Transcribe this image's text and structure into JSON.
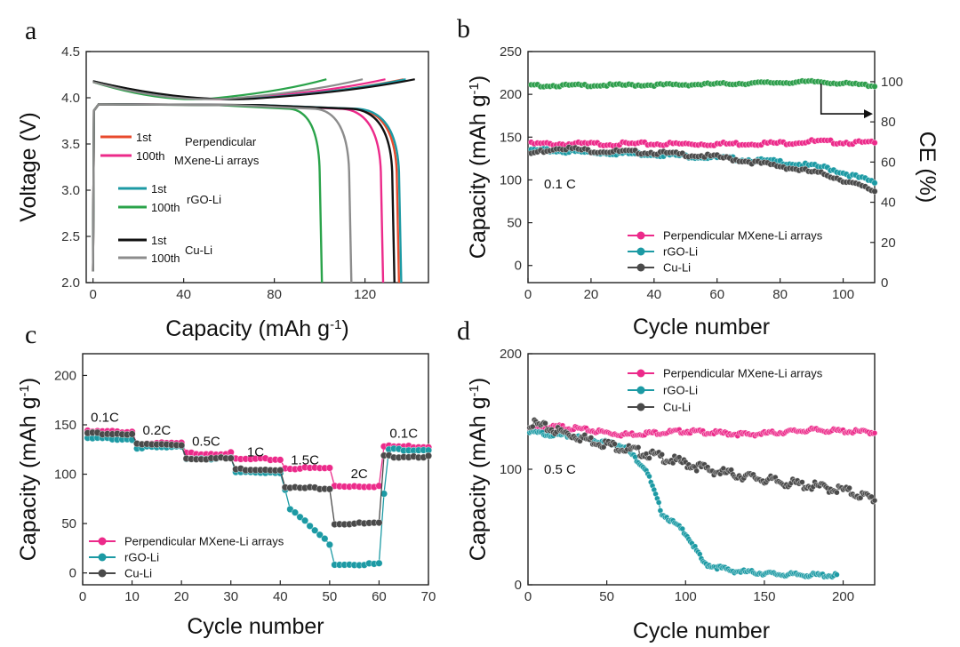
{
  "colors": {
    "mxene": "#ec2a8a",
    "mxene_first": "#e84a2c",
    "rgo": "#1c9aa4",
    "rgo_100": "#2aa34a",
    "cu": "#111111",
    "cu_100": "#8c8c8c",
    "cu_marker": "#4a4a4a",
    "ce": "#2e9e4c"
  },
  "chart_data": [
    {
      "panel": "a",
      "type": "line",
      "xlabel": "Capacity (mAh g",
      "xlabel_sup": "-1",
      "xlabel_tail": ")",
      "ylabel": "Voltage (V)",
      "xlim": [
        -3,
        148
      ],
      "ylim": [
        2.0,
        4.5
      ],
      "xticks": [
        0,
        40,
        80,
        120
      ],
      "yticks": [
        2.0,
        2.5,
        3.0,
        3.5,
        4.0,
        4.5
      ],
      "legend": [
        {
          "label": "1st",
          "series": "mx1"
        },
        {
          "label": "100th",
          "series": "mx100"
        },
        {
          "label": "1st",
          "series": "rgo1"
        },
        {
          "label": "100th",
          "series": "rgo100"
        },
        {
          "label": "1st",
          "series": "cu1"
        },
        {
          "label": "100th",
          "series": "cu100"
        }
      ],
      "group_labels": [
        "Perpendicular",
        "MXene-Li arrays",
        "rGO-Li",
        "Cu-Li"
      ],
      "series": [
        {
          "id": "mx1",
          "color_key": "mxene_first",
          "discharge_capacity": 135,
          "charge_capacity": 137
        },
        {
          "id": "mx100",
          "color_key": "mxene",
          "discharge_capacity": 128,
          "charge_capacity": 129
        },
        {
          "id": "rgo1",
          "color_key": "rgo",
          "discharge_capacity": 136,
          "charge_capacity": 138
        },
        {
          "id": "rgo100",
          "color_key": "rgo_100",
          "discharge_capacity": 101,
          "charge_capacity": 103
        },
        {
          "id": "cu1",
          "color_key": "cu",
          "discharge_capacity": 133,
          "charge_capacity": 142
        },
        {
          "id": "cu100",
          "color_key": "cu_100",
          "discharge_capacity": 114,
          "charge_capacity": 119
        }
      ]
    },
    {
      "panel": "b",
      "type": "scatter",
      "xlabel": "Cycle number",
      "ylabel": "Capacity (mAh g",
      "ylabel_sup": "-1",
      "ylabel_tail": ")",
      "y2label": "CE (%)",
      "xlim": [
        0,
        110
      ],
      "ylim": [
        -20,
        250
      ],
      "y2lim": [
        0,
        115
      ],
      "xticks": [
        0,
        20,
        40,
        60,
        80,
        100
      ],
      "yticks": [
        0,
        50,
        100,
        150,
        200,
        250
      ],
      "y2ticks": [
        0,
        20,
        40,
        60,
        80,
        100
      ],
      "annotation": "0.1 C",
      "legend": [
        "Perpendicular MXene-Li arrays",
        "rGO-Li",
        "Cu-Li"
      ],
      "series": [
        {
          "name": "Perpendicular MXene-Li arrays",
          "color_key": "mxene",
          "points": [
            [
              1,
              142
            ],
            [
              20,
              142
            ],
            [
              40,
              142
            ],
            [
              60,
              142
            ],
            [
              80,
              143
            ],
            [
              90,
              145
            ],
            [
              110,
              143
            ]
          ]
        },
        {
          "name": "rGO-Li",
          "color_key": "rgo",
          "points": [
            [
              1,
              135
            ],
            [
              20,
              132
            ],
            [
              40,
              130
            ],
            [
              60,
              126
            ],
            [
              80,
              121
            ],
            [
              95,
              114
            ],
            [
              110,
              97
            ]
          ]
        },
        {
          "name": "Cu-Li",
          "color_key": "cu_marker",
          "points": [
            [
              1,
              131
            ],
            [
              10,
              138
            ],
            [
              20,
              134
            ],
            [
              40,
              132
            ],
            [
              60,
              127
            ],
            [
              80,
              116
            ],
            [
              95,
              106
            ],
            [
              110,
              87
            ]
          ]
        },
        {
          "name": "CE",
          "axis": "y2",
          "color_key": "ce",
          "points": [
            [
              1,
              98
            ],
            [
              50,
              98.5
            ],
            [
              92,
              100
            ],
            [
              110,
              98
            ]
          ]
        }
      ]
    },
    {
      "panel": "c",
      "type": "scatter",
      "xlabel": "Cycle number",
      "ylabel": "Capacity (mAh g",
      "ylabel_sup": "-1",
      "ylabel_tail": ")",
      "xlim": [
        0,
        70
      ],
      "ylim": [
        -12,
        222
      ],
      "xticks": [
        0,
        10,
        20,
        30,
        40,
        50,
        60,
        70
      ],
      "yticks": [
        0,
        50,
        100,
        150,
        200
      ],
      "rate_labels": [
        {
          "text": "0.1C",
          "x": 4.5,
          "y": 153
        },
        {
          "text": "0.2C",
          "x": 15,
          "y": 140
        },
        {
          "text": "0.5C",
          "x": 25,
          "y": 129
        },
        {
          "text": "1C",
          "x": 35,
          "y": 118
        },
        {
          "text": "1.5C",
          "x": 45,
          "y": 110
        },
        {
          "text": "2C",
          "x": 56,
          "y": 96
        },
        {
          "text": "0.1C",
          "x": 65,
          "y": 137
        }
      ],
      "legend": [
        "Perpendicular MXene-Li arrays",
        "rGO-Li",
        "Cu-Li"
      ],
      "series": [
        {
          "name": "Perpendicular MXene-Li arrays",
          "color_key": "mxene",
          "steps": [
            143,
            131,
            121,
            115,
            106,
            88,
            128
          ]
        },
        {
          "name": "rGO-Li",
          "color_key": "rgo",
          "steps": [
            136,
            127,
            116,
            102,
            28,
            9,
            125
          ]
        },
        {
          "name": "Cu-Li",
          "color_key": "cu_marker",
          "steps": [
            141,
            130,
            116,
            105,
            86,
            50,
            118
          ]
        }
      ]
    },
    {
      "panel": "d",
      "type": "scatter",
      "xlabel": "Cycle number",
      "ylabel": "Capacity (mAh g",
      "ylabel_sup": "-1",
      "ylabel_tail": ")",
      "xlim": [
        0,
        220
      ],
      "ylim": [
        0,
        200
      ],
      "xticks": [
        0,
        50,
        100,
        150,
        200
      ],
      "yticks": [
        0,
        100,
        200
      ],
      "annotation": "0.5 C",
      "legend": [
        "Perpendicular MXene-Li arrays",
        "rGO-Li",
        "Cu-Li"
      ],
      "series": [
        {
          "name": "Perpendicular MXene-Li arrays",
          "color_key": "mxene",
          "points": [
            [
              1,
              134
            ],
            [
              20,
              137
            ],
            [
              60,
              130
            ],
            [
              100,
              133
            ],
            [
              140,
              130
            ],
            [
              180,
              134
            ],
            [
              220,
              132
            ]
          ]
        },
        {
          "name": "rGO-Li",
          "color_key": "rgo",
          "points": [
            [
              1,
              132
            ],
            [
              30,
              128
            ],
            [
              60,
              121
            ],
            [
              75,
              100
            ],
            [
              85,
              62
            ],
            [
              100,
              45
            ],
            [
              112,
              18
            ],
            [
              130,
              12
            ],
            [
              160,
              9
            ],
            [
              196,
              8
            ]
          ]
        },
        {
          "name": "Cu-Li",
          "color_key": "cu_marker",
          "points": [
            [
              1,
              140
            ],
            [
              40,
              125
            ],
            [
              80,
              112
            ],
            [
              120,
              98
            ],
            [
              160,
              89
            ],
            [
              200,
              82
            ],
            [
              220,
              74
            ]
          ]
        }
      ]
    }
  ]
}
